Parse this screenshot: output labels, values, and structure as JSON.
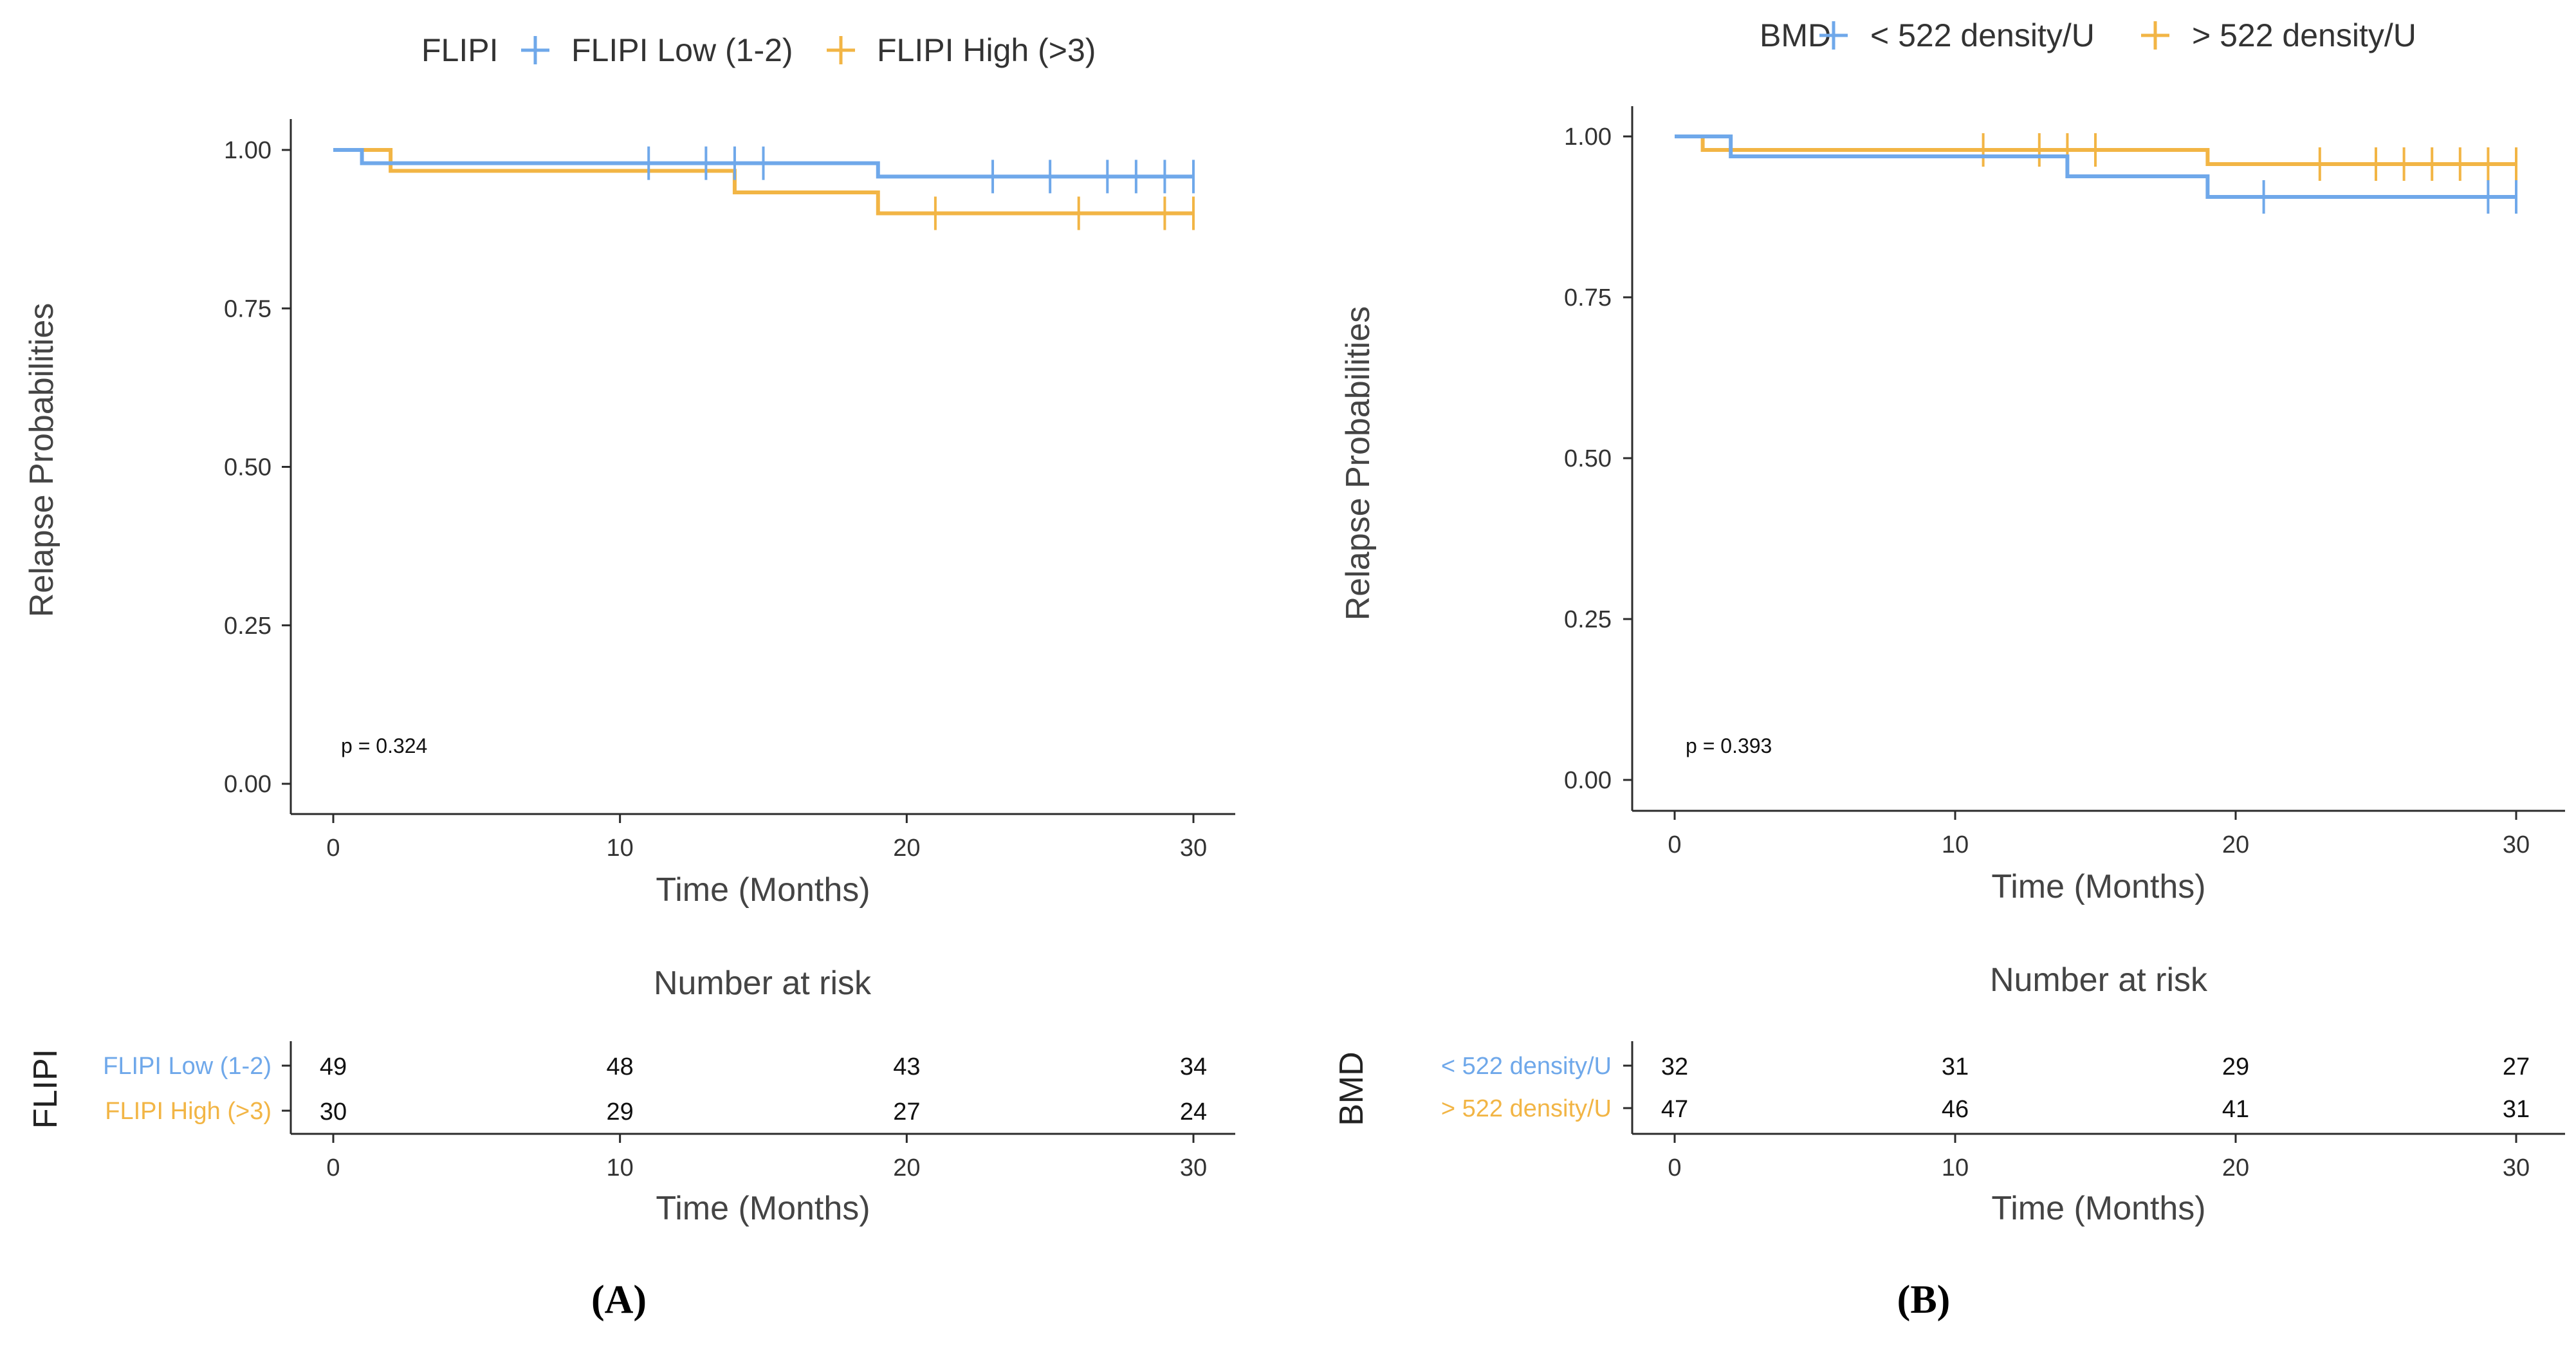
{
  "chart_data": [
    {
      "panel": "A",
      "type": "line",
      "subtype": "kaplan-meier-step",
      "legend_title": "FLIPI",
      "legend_position": "top",
      "ylabel": "Relapse Probabilities",
      "xlabel": "Time (Months)",
      "xlim": [
        0,
        30
      ],
      "ylim": [
        0,
        1
      ],
      "x_ticks": [
        0,
        10,
        20,
        30
      ],
      "y_ticks": [
        0.0,
        0.25,
        0.5,
        0.75,
        1.0
      ],
      "y_tick_labels": [
        "0.00",
        "0.25",
        "0.50",
        "0.75",
        "1.00"
      ],
      "x_tick_labels": [
        "0",
        "10",
        "20",
        "30"
      ],
      "annotation": "p = 0.324",
      "series": [
        {
          "name": "FLIPI Low (1-2)",
          "risk_label": "FLIPI Low (1-2)",
          "color": "#6fa8ea",
          "steps": [
            [
              0,
              1.0
            ],
            [
              1,
              0.979
            ],
            [
              19,
              0.958
            ],
            [
              30,
              0.958
            ]
          ],
          "censor_times": [
            11,
            13,
            14,
            15,
            23,
            25,
            27,
            28,
            29,
            30
          ]
        },
        {
          "name": "FLIPI High (>3)",
          "risk_label": "FLIPI High (>3)",
          "color": "#f2b545",
          "steps": [
            [
              0,
              1.0
            ],
            [
              2,
              0.967
            ],
            [
              14,
              0.933
            ],
            [
              19,
              0.9
            ],
            [
              30,
              0.9
            ]
          ],
          "censor_times": [
            21,
            26,
            29,
            30
          ]
        }
      ],
      "risk_table": {
        "title": "Number at risk",
        "ylabel": "FLIPI",
        "xlabel": "Time (Months)",
        "times": [
          0,
          10,
          20,
          30
        ],
        "rows": [
          {
            "label": "FLIPI Low (1-2)",
            "values": [
              "49",
              "48",
              "43",
              "34"
            ]
          },
          {
            "label": "FLIPI High (>3)",
            "values": [
              "30",
              "29",
              "27",
              "24"
            ]
          }
        ]
      },
      "panel_label": "(A)"
    },
    {
      "panel": "B",
      "type": "line",
      "subtype": "kaplan-meier-step",
      "legend_title": "BMD",
      "legend_position": "top",
      "ylabel": "Relapse Probabilities",
      "xlabel": "Time (Months)",
      "xlim": [
        0,
        30
      ],
      "ylim": [
        0,
        1
      ],
      "x_ticks": [
        0,
        10,
        20,
        30
      ],
      "y_ticks": [
        0.0,
        0.25,
        0.5,
        0.75,
        1.0
      ],
      "y_tick_labels": [
        "0.00",
        "0.25",
        "0.50",
        "0.75",
        "1.00"
      ],
      "x_tick_labels": [
        "0",
        "10",
        "20",
        "30"
      ],
      "annotation": "p = 0.393",
      "series": [
        {
          "name": "< 522 density/U",
          "risk_label": "< 522 density/U",
          "color": "#6fa8ea",
          "steps": [
            [
              0,
              1.0
            ],
            [
              2,
              0.969
            ],
            [
              14,
              0.938
            ],
            [
              19,
              0.906
            ],
            [
              30,
              0.906
            ]
          ],
          "censor_times": [
            21,
            29,
            30
          ]
        },
        {
          "name": "> 522 density/U",
          "risk_label": "> 522 density/U",
          "color": "#f2b545",
          "steps": [
            [
              0,
              1.0
            ],
            [
              1,
              0.979
            ],
            [
              19,
              0.957
            ],
            [
              30,
              0.957
            ]
          ],
          "censor_times": [
            11,
            13,
            14,
            15,
            23,
            25,
            26,
            27,
            28,
            29,
            30
          ]
        }
      ],
      "risk_table": {
        "title": "Number at risk",
        "ylabel": "BMD",
        "xlabel": "Time (Months)",
        "times": [
          0,
          10,
          20,
          30
        ],
        "rows": [
          {
            "label": "< 522 density/U",
            "values": [
              "32",
              "31",
              "29",
              "27"
            ]
          },
          {
            "label": "> 522 density/U",
            "values": [
              "47",
              "46",
              "41",
              "31"
            ]
          }
        ]
      },
      "panel_label": "(B)"
    }
  ]
}
